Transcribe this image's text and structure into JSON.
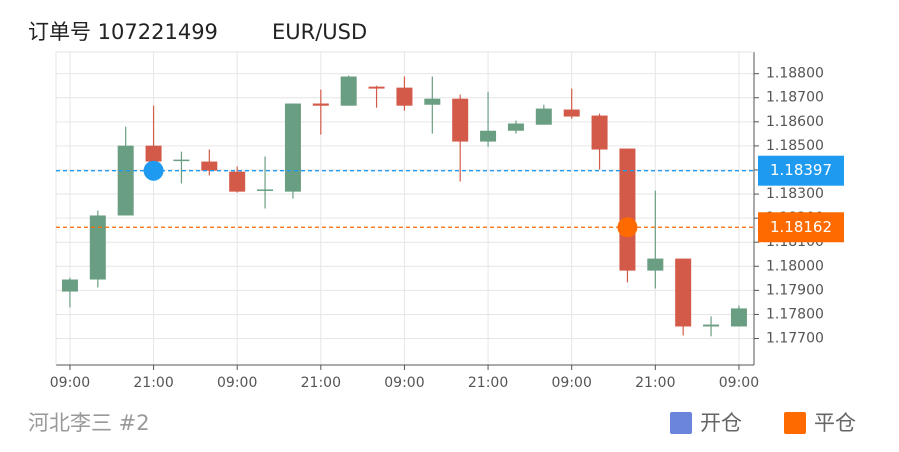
{
  "chart_data": {
    "type": "candlestick",
    "title": "订单号 107221499",
    "symbol": "EUR/USD",
    "footer": "河北李三 #2",
    "categories": [
      "09:00",
      null,
      null,
      "21:00",
      null,
      null,
      "09:00",
      null,
      null,
      "21:00",
      null,
      null,
      "09:00",
      null,
      null,
      "21:00",
      null,
      null,
      "09:00",
      null,
      null,
      "21:00",
      null,
      null,
      "09:00"
    ],
    "open": [
      1.17895,
      1.17945,
      1.18211,
      1.18501,
      1.18439,
      1.18435,
      1.18393,
      1.18314,
      1.1831,
      1.18676,
      1.18667,
      1.18746,
      1.18742,
      1.18671,
      1.18696,
      1.18518,
      1.18563,
      1.18588,
      1.18651,
      1.18626,
      1.18489,
      1.17982,
      1.18032,
      1.1775,
      1.1775
    ],
    "high": [
      1.17953,
      1.18231,
      1.1858,
      1.18667,
      1.18476,
      1.18485,
      1.18414,
      1.18456,
      1.18676,
      1.18734,
      1.18792,
      1.1875,
      1.18788,
      1.18788,
      1.18713,
      1.18725,
      1.18605,
      1.18671,
      1.18738,
      1.18634,
      1.18489,
      1.18314,
      1.18032,
      1.17792,
      1.17837
    ],
    "low": [
      1.17829,
      1.17912,
      1.18211,
      1.18402,
      1.18344,
      1.18377,
      1.18306,
      1.1824,
      1.18281,
      1.18547,
      1.18667,
      1.18659,
      1.18646,
      1.18551,
      1.18352,
      1.18497,
      1.18551,
      1.18588,
      1.18613,
      1.18402,
      1.17933,
      1.17908,
      1.17713,
      1.17709,
      1.1775
    ],
    "close": [
      1.17945,
      1.18211,
      1.18501,
      1.18435,
      1.18443,
      1.18397,
      1.1831,
      1.18319,
      1.18676,
      1.18667,
      1.18788,
      1.18738,
      1.18667,
      1.18696,
      1.18518,
      1.18563,
      1.18593,
      1.18655,
      1.18622,
      1.18485,
      1.17982,
      1.18032,
      1.1775,
      1.17758,
      1.17825
    ],
    "up_color": "#6a9e82",
    "down_color": "#d35a48",
    "ylim": [
      1.1759,
      1.1889
    ],
    "yticks": [
      {
        "value": 1.177,
        "label": "1.17700"
      },
      {
        "value": 1.178,
        "label": "1.17800"
      },
      {
        "value": 1.179,
        "label": "1.17900"
      },
      {
        "value": 1.18,
        "label": "1.18000"
      },
      {
        "value": 1.181,
        "label": "1.18100"
      },
      {
        "value": 1.182,
        "label": "1.18200"
      },
      {
        "value": 1.183,
        "label": "1.18300"
      },
      {
        "value": 1.184,
        "label": "1.18400"
      },
      {
        "value": 1.185,
        "label": "1.18500"
      },
      {
        "value": 1.186,
        "label": "1.18600"
      },
      {
        "value": 1.187,
        "label": "1.18700"
      },
      {
        "value": 1.188,
        "label": "1.18800"
      }
    ],
    "grid": true,
    "levels": [
      {
        "name": "开仓",
        "value": 1.18397,
        "index": 3,
        "color": "#1e9bf0",
        "legend_color": "#6b84dc"
      },
      {
        "name": "平仓",
        "value": 1.18162,
        "index": 20,
        "color": "#ff6a00",
        "legend_color": "#ff6a00"
      }
    ]
  }
}
